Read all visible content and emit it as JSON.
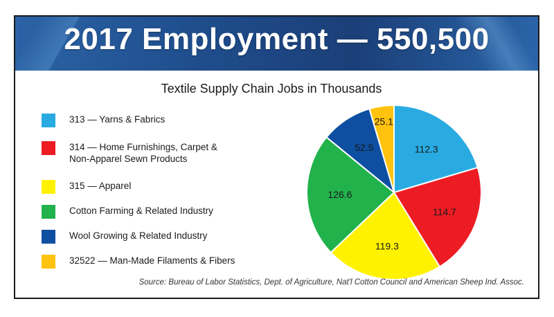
{
  "header": {
    "title": "2017 Employment — 550,500",
    "band_color": "#1f4d8c"
  },
  "chart_data": {
    "type": "pie",
    "title": "Textile Supply Chain Jobs in Thousands",
    "slices": [
      {
        "label": "313 — Yarns & Fabrics",
        "value": 112.3,
        "display": "112.3",
        "color": "#29abe2"
      },
      {
        "label": "314 — Home Furnishings, Carpet &\nNon-Apparel Sewn Products",
        "value": 114.7,
        "display": "114.7",
        "color": "#ed1c24"
      },
      {
        "label": "315 — Apparel",
        "value": 119.3,
        "display": "119.3",
        "color": "#fff200"
      },
      {
        "label": "Cotton Farming & Related Industry",
        "value": 126.6,
        "display": "126.6",
        "color": "#22b24c"
      },
      {
        "label": "Wool Growing & Related Industry",
        "value": 52.5,
        "display": "52.5",
        "color": "#0e4fa2"
      },
      {
        "label": "32522 — Man-Made Filaments & Fibers",
        "value": 25.1,
        "display": "25.1",
        "color": "#ffc20e"
      }
    ],
    "legend_position": "left"
  },
  "footer": {
    "source": "Source: Bureau of Labor Statistics, Dept. of Agriculture, Nat'l Cotton Council and American Sheep Ind. Assoc."
  }
}
